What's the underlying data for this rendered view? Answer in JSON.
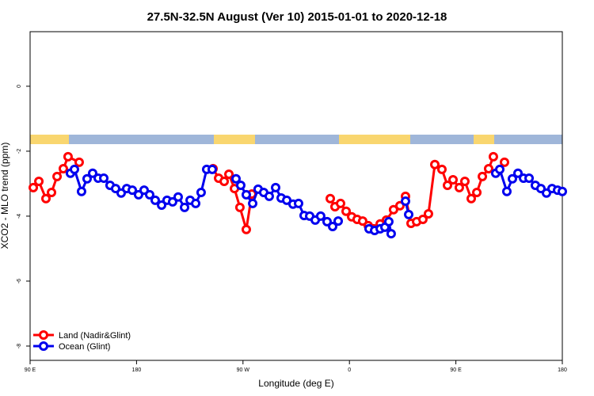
{
  "chart_data": {
    "type": "line",
    "title": "27.5N-32.5N August (Ver 10)   2015-01-01 to 2020-12-18",
    "xlabel": "Longitude (deg E)",
    "ylabel": "XCO2 - MLO trend (ppm)",
    "xlim": [
      90,
      540
    ],
    "ylim": [
      -8.44,
      1.68
    ],
    "xticks": [
      {
        "value": 90,
        "label": "90 E"
      },
      180,
      {
        "value": 270,
        "label": "90 W"
      },
      {
        "value": 360,
        "label": "0"
      },
      {
        "value": 450,
        "label": "90 E"
      },
      {
        "value": 540,
        "label": "180"
      }
    ],
    "yticks": [
      0,
      -2,
      -4,
      -6,
      -8
    ],
    "legend": "bottom-left",
    "series": [
      {
        "name": "Land (Nadir&Glint)",
        "color": "#ff0000",
        "x": [
          92.7,
          97.4,
          103.4,
          108.1,
          112.8,
          118.1,
          122.1,
          131.5,
          200,
          244.7,
          249.4,
          254.1,
          258.1,
          262.8,
          267.4,
          272.8,
          277.5,
          340,
          343.8,
          347.8,
          352.5,
          357.2,
          361.9,
          366.5,
          371.2,
          375.9,
          380.6,
          386.0,
          391.3,
          397.3,
          402.7,
          407.4,
          412.1,
          416.8,
          422.1,
          426.8,
          432.2,
          438.2,
          442.9,
          447.6,
          452.9,
          457.6,
          463.0,
          467.7,
          472.4,
          477.7,
          481.7,
          486,
          491.1
        ],
        "values": [
          -3.12,
          -2.93,
          -3.46,
          -3.27,
          -2.78,
          -2.54,
          -2.17,
          -2.34,
          null,
          -2.54,
          -2.83,
          -2.93,
          -2.71,
          -3.15,
          -3.73,
          -4.41,
          -3.32,
          null,
          -3.46,
          -3.71,
          -3.61,
          -3.85,
          -4.02,
          -4.1,
          -4.15,
          -4.29,
          -4.39,
          -4.24,
          -4.12,
          -3.8,
          -3.68,
          -3.39,
          -4.22,
          -4.17,
          -4.1,
          -3.93,
          -2.41,
          -2.56,
          -3.05,
          -2.88,
          -3.12,
          -2.93,
          -3.46,
          -3.27,
          -2.78,
          -2.54,
          -2.17,
          null,
          -2.34
        ]
      },
      {
        "name": "Ocean (Glint)",
        "color": "#0000ee",
        "x": [
          124.1,
          127.5,
          133.5,
          138.2,
          142.9,
          147.6,
          152.3,
          157.6,
          162.3,
          167.0,
          171.7,
          176.4,
          181.7,
          186.4,
          191.1,
          195.8,
          201.2,
          205.8,
          210.5,
          215.2,
          220.6,
          225.3,
          230.0,
          234.6,
          239.3,
          244.0,
          285,
          264.1,
          268.1,
          272.8,
          278.2,
          282.8,
          287.5,
          292.2,
          297.6,
          302.3,
          307.0,
          312.3,
          317.0,
          321.7,
          326.4,
          331.1,
          335.7,
          341.1,
          345.8,
          350.5,
          360,
          376.6,
          381.3,
          386.0,
          390.0,
          393.3,
          395.3,
          400,
          407.4,
          410.1,
          430,
          483.7,
          487.1,
          493.1,
          497.8,
          502.5,
          507.2,
          511.9,
          517.2,
          521.9,
          526.6,
          531.3,
          536.0,
          540.0
        ],
        "values": [
          -2.68,
          -2.56,
          -3.24,
          -2.85,
          -2.68,
          -2.83,
          -2.83,
          -3.05,
          -3.15,
          -3.29,
          -3.15,
          -3.2,
          -3.34,
          -3.2,
          -3.34,
          -3.51,
          -3.66,
          -3.51,
          -3.56,
          -3.41,
          -3.73,
          -3.51,
          -3.61,
          -3.27,
          -2.56,
          -2.56,
          null,
          -2.85,
          -3.05,
          -3.34,
          -3.61,
          -3.17,
          -3.27,
          -3.39,
          -3.12,
          -3.44,
          -3.51,
          -3.63,
          -3.61,
          -3.98,
          -4.0,
          -4.12,
          -4.0,
          -4.17,
          -4.32,
          -4.15,
          null,
          -4.39,
          -4.44,
          -4.39,
          -4.34,
          -4.17,
          -4.54,
          null,
          -3.54,
          -3.95,
          null,
          -2.68,
          -2.56,
          -3.24,
          -2.85,
          -2.68,
          -2.83,
          -2.83,
          -3.05,
          -3.15,
          -3.29,
          -3.15,
          -3.2,
          -3.24
        ]
      }
    ]
  }
}
